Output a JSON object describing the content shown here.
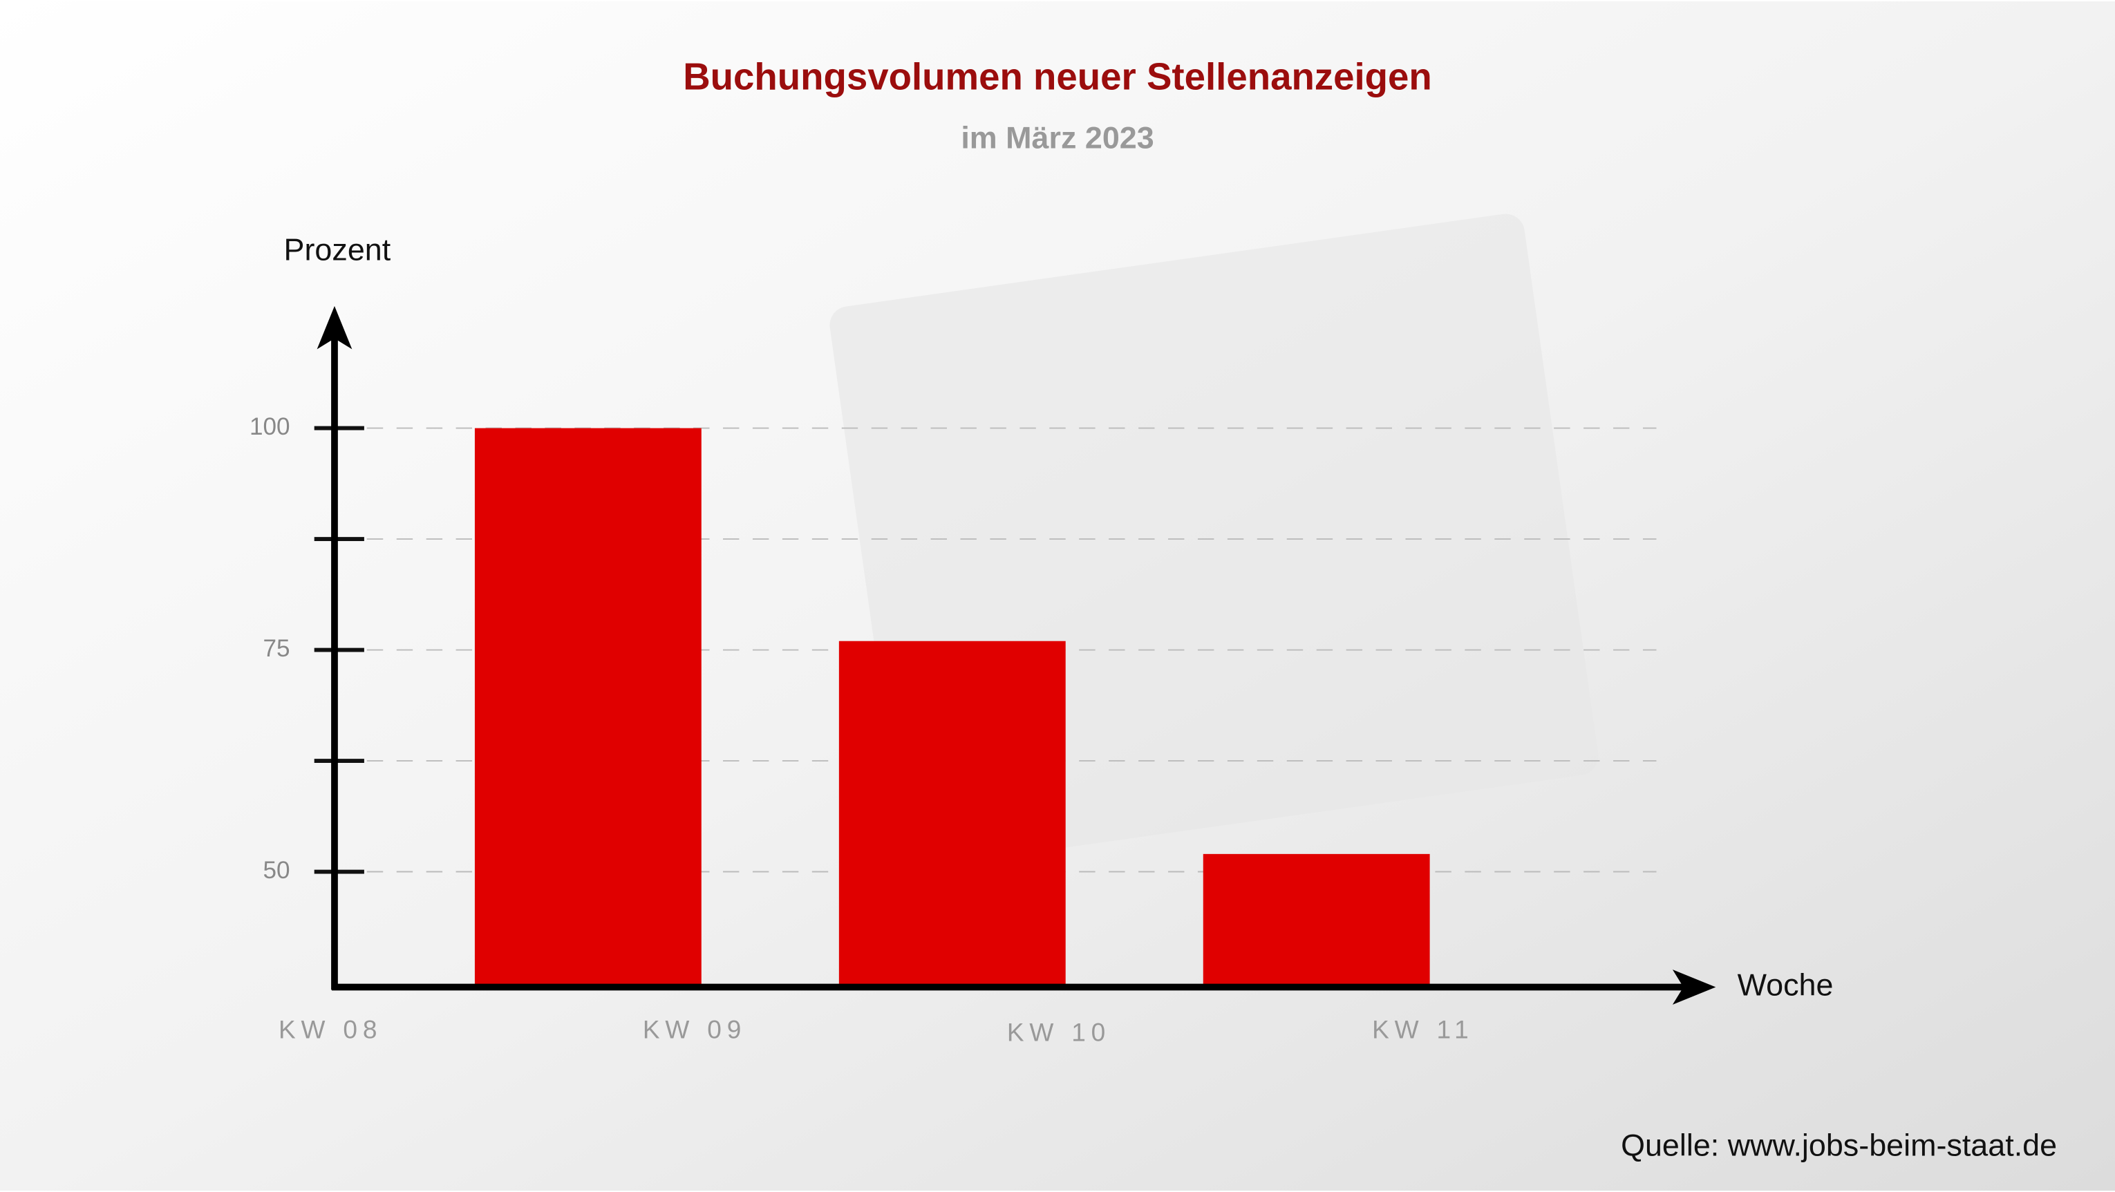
{
  "chart_data": {
    "type": "bar",
    "title": "Buchungsvolumen neuer Stellenanzeigen",
    "subtitle": "im März 2023",
    "y_label": "Prozent",
    "x_label": "Woche",
    "source": "Quelle: www.jobs-beim-staat.de",
    "categories": [
      "KW 08",
      "KW 09",
      "KW 10",
      "KW 11"
    ],
    "values": [
      100,
      76,
      52,
      null
    ],
    "color": "#e00000",
    "ylim": [
      37,
      113
    ],
    "yticks": [
      50,
      75,
      100
    ],
    "yticks_minor": [
      62.5,
      87.5
    ],
    "grid": true
  }
}
